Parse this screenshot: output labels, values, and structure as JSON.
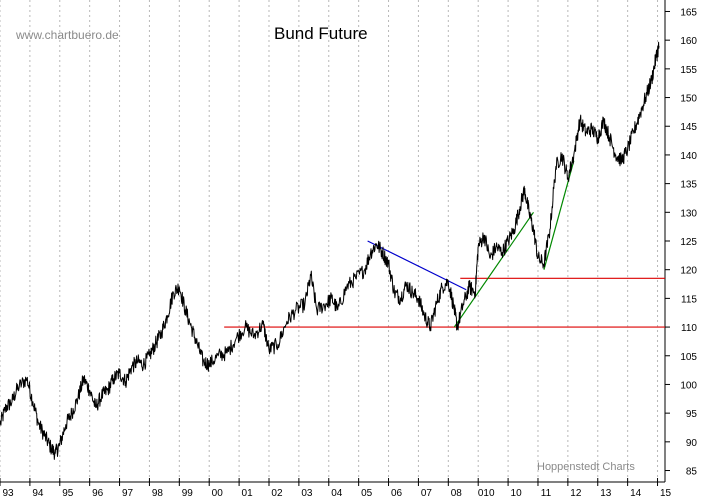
{
  "chart_data": {
    "type": "line",
    "title": "Bund Future",
    "watermark": "www.chartbuero.de",
    "credit": "Hoppenstedt Charts",
    "xlabel": "",
    "ylabel": "",
    "xlim": [
      1993.0,
      2015.25
    ],
    "ylim": [
      83,
      167
    ],
    "grid": "vertical-dotted-yearly",
    "x_tick_labels": [
      {
        "x": 1993.0,
        "label": "93"
      },
      {
        "x": 1994.0,
        "label": "94"
      },
      {
        "x": 1995.0,
        "label": "95"
      },
      {
        "x": 1996.0,
        "label": "96"
      },
      {
        "x": 1997.0,
        "label": "97"
      },
      {
        "x": 1998.0,
        "label": "98"
      },
      {
        "x": 1999.0,
        "label": "99"
      },
      {
        "x": 2000.0,
        "label": "00"
      },
      {
        "x": 2001.0,
        "label": "01"
      },
      {
        "x": 2002.0,
        "label": "02"
      },
      {
        "x": 2003.0,
        "label": "03"
      },
      {
        "x": 2004.0,
        "label": "04"
      },
      {
        "x": 2005.0,
        "label": "05"
      },
      {
        "x": 2006.0,
        "label": "06"
      },
      {
        "x": 2007.0,
        "label": "07"
      },
      {
        "x": 2008.0,
        "label": "08"
      },
      {
        "x": 2009.0,
        "label": "010"
      },
      {
        "x": 2010.0,
        "label": "10"
      },
      {
        "x": 2011.0,
        "label": "11"
      },
      {
        "x": 2012.0,
        "label": "12"
      },
      {
        "x": 2013.0,
        "label": "13"
      },
      {
        "x": 2014.0,
        "label": "14"
      },
      {
        "x": 2015.0,
        "label": "15"
      }
    ],
    "y_ticks": [
      85,
      90,
      95,
      100,
      105,
      110,
      115,
      120,
      125,
      130,
      135,
      140,
      145,
      150,
      155,
      160,
      165
    ],
    "series": [
      {
        "color": "#000000",
        "points": [
          [
            1993.0,
            93.0
          ],
          [
            1993.2,
            96.0
          ],
          [
            1993.4,
            97.0
          ],
          [
            1993.6,
            99.5
          ],
          [
            1993.9,
            101.0
          ],
          [
            1994.1,
            97.0
          ],
          [
            1994.3,
            93.0
          ],
          [
            1994.5,
            91.0
          ],
          [
            1994.7,
            89.0
          ],
          [
            1994.85,
            88.0
          ],
          [
            1995.0,
            89.5
          ],
          [
            1995.2,
            93.0
          ],
          [
            1995.4,
            95.0
          ],
          [
            1995.6,
            97.5
          ],
          [
            1995.8,
            101.0
          ],
          [
            1996.0,
            99.0
          ],
          [
            1996.2,
            96.0
          ],
          [
            1996.4,
            98.0
          ],
          [
            1996.6,
            99.0
          ],
          [
            1996.8,
            101.0
          ],
          [
            1997.0,
            102.0
          ],
          [
            1997.2,
            100.5
          ],
          [
            1997.4,
            103.0
          ],
          [
            1997.6,
            104.0
          ],
          [
            1997.8,
            103.5
          ],
          [
            1998.0,
            105.0
          ],
          [
            1998.2,
            107.0
          ],
          [
            1998.4,
            109.0
          ],
          [
            1998.6,
            112.0
          ],
          [
            1998.8,
            116.0
          ],
          [
            1999.0,
            117.0
          ],
          [
            1999.2,
            113.0
          ],
          [
            1999.4,
            110.0
          ],
          [
            1999.6,
            107.0
          ],
          [
            1999.8,
            104.0
          ],
          [
            2000.0,
            103.5
          ],
          [
            2000.3,
            105.0
          ],
          [
            2000.6,
            105.5
          ],
          [
            2000.9,
            108.0
          ],
          [
            2001.2,
            110.0
          ],
          [
            2001.5,
            108.5
          ],
          [
            2001.8,
            110.5
          ],
          [
            2002.0,
            106.0
          ],
          [
            2002.3,
            107.0
          ],
          [
            2002.6,
            111.0
          ],
          [
            2002.9,
            113.0
          ],
          [
            2003.2,
            114.0
          ],
          [
            2003.4,
            119.0
          ],
          [
            2003.6,
            113.0
          ],
          [
            2003.9,
            114.0
          ],
          [
            2004.1,
            115.0
          ],
          [
            2004.3,
            113.0
          ],
          [
            2004.6,
            117.0
          ],
          [
            2004.9,
            118.5
          ],
          [
            2005.2,
            120.0
          ],
          [
            2005.4,
            123.0
          ],
          [
            2005.6,
            124.5
          ],
          [
            2005.8,
            123.0
          ],
          [
            2006.0,
            121.0
          ],
          [
            2006.2,
            116.0
          ],
          [
            2006.4,
            115.0
          ],
          [
            2006.6,
            117.5
          ],
          [
            2006.8,
            116.0
          ],
          [
            2007.0,
            115.0
          ],
          [
            2007.2,
            112.0
          ],
          [
            2007.4,
            110.0
          ],
          [
            2007.6,
            114.0
          ],
          [
            2007.8,
            117.0
          ],
          [
            2008.0,
            118.0
          ],
          [
            2008.2,
            113.0
          ],
          [
            2008.3,
            110.0
          ],
          [
            2008.5,
            114.0
          ],
          [
            2008.7,
            117.0
          ],
          [
            2008.9,
            116.0
          ],
          [
            2009.0,
            124.0
          ],
          [
            2009.2,
            126.0
          ],
          [
            2009.4,
            122.0
          ],
          [
            2009.6,
            124.0
          ],
          [
            2009.8,
            123.0
          ],
          [
            2010.0,
            125.0
          ],
          [
            2010.2,
            127.0
          ],
          [
            2010.4,
            131.0
          ],
          [
            2010.55,
            134.0
          ],
          [
            2010.7,
            130.0
          ],
          [
            2010.85,
            127.0
          ],
          [
            2011.0,
            122.0
          ],
          [
            2011.2,
            121.0
          ],
          [
            2011.4,
            127.0
          ],
          [
            2011.6,
            138.0
          ],
          [
            2011.8,
            140.0
          ],
          [
            2012.0,
            136.0
          ],
          [
            2012.2,
            140.0
          ],
          [
            2012.4,
            146.0
          ],
          [
            2012.6,
            144.0
          ],
          [
            2012.8,
            144.5
          ],
          [
            2013.0,
            143.0
          ],
          [
            2013.2,
            146.0
          ],
          [
            2013.4,
            143.0
          ],
          [
            2013.6,
            140.0
          ],
          [
            2013.8,
            139.0
          ],
          [
            2014.0,
            141.0
          ],
          [
            2014.2,
            144.0
          ],
          [
            2014.4,
            147.0
          ],
          [
            2014.6,
            150.0
          ],
          [
            2014.8,
            153.0
          ],
          [
            2014.95,
            157.0
          ],
          [
            2015.05,
            159.0
          ]
        ]
      }
    ],
    "annotations": [
      {
        "color": "#dd0000",
        "from": [
          2000.5,
          110.0
        ],
        "to": [
          2015.25,
          110.0
        ]
      },
      {
        "color": "#dd0000",
        "from": [
          2008.4,
          118.5
        ],
        "to": [
          2015.25,
          118.5
        ]
      },
      {
        "color": "#0000cc",
        "from": [
          2005.3,
          125.0
        ],
        "to": [
          2008.6,
          116.5
        ]
      },
      {
        "color": "#008800",
        "from": [
          2008.2,
          110.0
        ],
        "to": [
          2010.85,
          130.0
        ]
      },
      {
        "color": "#008800",
        "from": [
          2011.2,
          120.0
        ],
        "to": [
          2012.2,
          139.0
        ]
      }
    ]
  }
}
